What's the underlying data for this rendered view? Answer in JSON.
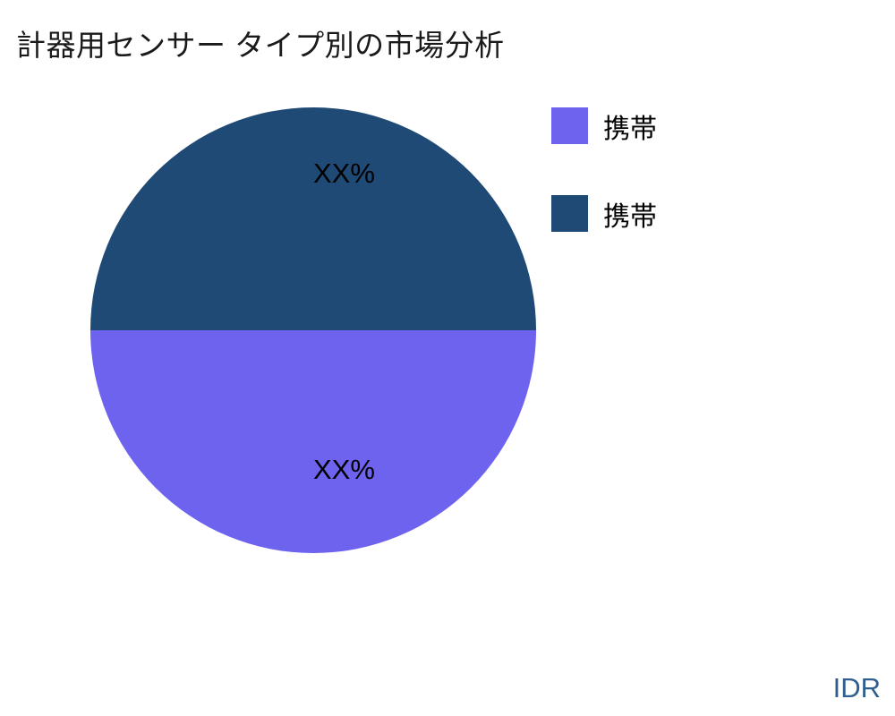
{
  "title": "計器用センサー タイプ別の市場分析",
  "watermark": {
    "text": "IDR",
    "color": "#2E5F8E"
  },
  "legend": {
    "position": "right",
    "items": [
      {
        "label": "携帯",
        "color": "#6E63EF"
      },
      {
        "label": "携帯",
        "color": "#1F4A75"
      }
    ]
  },
  "chart_data": {
    "type": "pie",
    "title": "計器用センサー タイプ別の市場分析",
    "slices": [
      {
        "label": "携帯",
        "color": "#6E63EF",
        "value_pct": 50,
        "value_label": "XX%",
        "position": "bottom"
      },
      {
        "label": "携帯",
        "color": "#1F4A75",
        "value_pct": 50,
        "value_label": "XX%",
        "position": "top"
      }
    ],
    "legend_position": "right",
    "labels_shown_as": "XX% placeholders"
  }
}
